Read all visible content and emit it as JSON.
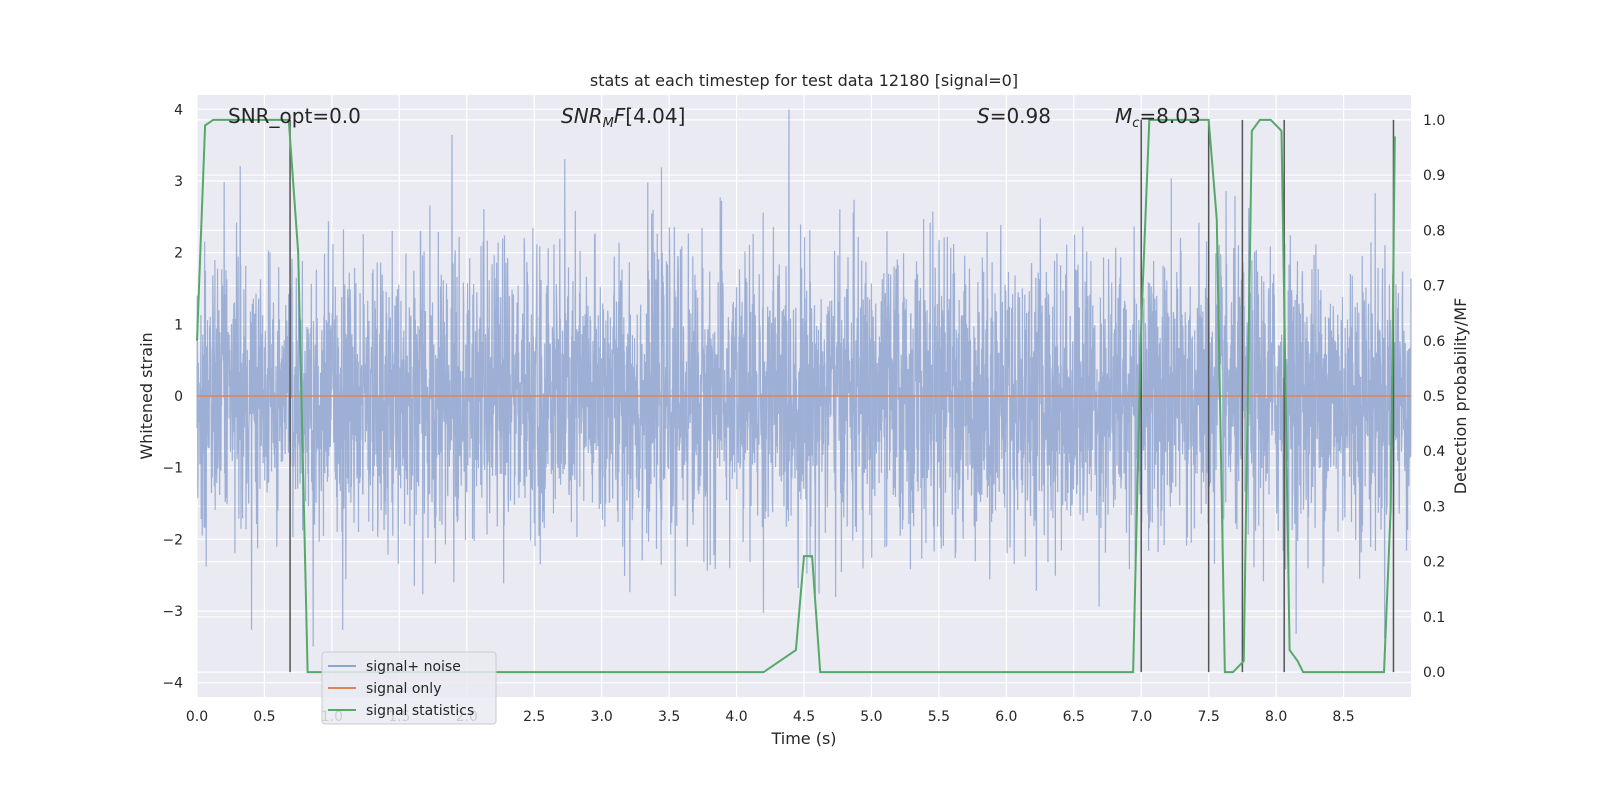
{
  "chart_data": {
    "type": "line",
    "title": "stats at each timestep for test data 12180 [signal=0]",
    "xlabel": "Time (s)",
    "ylabel": "Whitened strain",
    "y2label": "Detection probability/MF",
    "xlim": [
      0.0,
      9.0
    ],
    "ylim": [
      -4.2,
      4.2
    ],
    "y2lim": [
      -0.045,
      1.045
    ],
    "xticks": [
      "0.0",
      "0.5",
      "1.0",
      "1.5",
      "2.0",
      "2.5",
      "3.0",
      "3.5",
      "4.0",
      "4.5",
      "5.0",
      "5.5",
      "6.0",
      "6.5",
      "7.0",
      "7.5",
      "8.0",
      "8.5"
    ],
    "yticks": [
      "4",
      "3",
      "2",
      "1",
      "0",
      "−1",
      "−2",
      "−3",
      "−4"
    ],
    "y2ticks": [
      "1.0",
      "0.9",
      "0.8",
      "0.7",
      "0.6",
      "0.5",
      "0.4",
      "0.3",
      "0.2",
      "0.1",
      "0.0"
    ],
    "grid": true,
    "legend_position": "lower-left",
    "annotations": {
      "snr_opt": "SNR_opt=0.0",
      "snr_mf": "[4.04]",
      "s_value": "=0.98",
      "mc_value": "=8.03"
    },
    "series": [
      {
        "name": "signal+ noise",
        "color": "#8fa5cf",
        "description_range": [
          -3.7,
          4.0
        ],
        "noise_std": 1.0,
        "sample_rate": 512
      },
      {
        "name": "signal only",
        "color": "#dd8452",
        "x": [
          0.0,
          9.0
        ],
        "y": [
          0.0,
          0.0
        ]
      },
      {
        "name": "signal statistics",
        "color": "#55a868",
        "x": [
          0.0,
          0.06,
          0.12,
          0.2,
          0.4,
          0.6,
          0.68,
          0.75,
          0.82,
          0.9,
          1.5,
          2.5,
          3.5,
          4.2,
          4.44,
          4.5,
          4.56,
          4.62,
          4.7,
          5.5,
          6.5,
          6.94,
          7.0,
          7.06,
          7.12,
          7.3,
          7.5,
          7.56,
          7.62,
          7.68,
          7.76,
          7.82,
          7.88,
          7.96,
          8.04,
          8.1,
          8.16,
          8.2,
          8.3,
          8.5,
          8.7,
          8.8,
          8.85,
          8.88
        ],
        "y": [
          0.6,
          0.99,
          1.0,
          1.0,
          1.0,
          1.0,
          1.0,
          0.76,
          0.0,
          0.0,
          0.0,
          0.0,
          0.0,
          0.0,
          0.04,
          0.21,
          0.21,
          0.0,
          0.0,
          0.0,
          0.0,
          0.0,
          0.63,
          1.0,
          1.0,
          1.0,
          1.0,
          0.82,
          0.0,
          0.0,
          0.02,
          0.98,
          1.0,
          1.0,
          0.98,
          0.04,
          0.02,
          0.0,
          0.0,
          0.0,
          0.0,
          0.0,
          0.3,
          0.97
        ]
      }
    ],
    "vertical_lines": [
      0.69,
      7.0,
      7.5,
      7.75,
      8.06,
      8.87
    ]
  }
}
